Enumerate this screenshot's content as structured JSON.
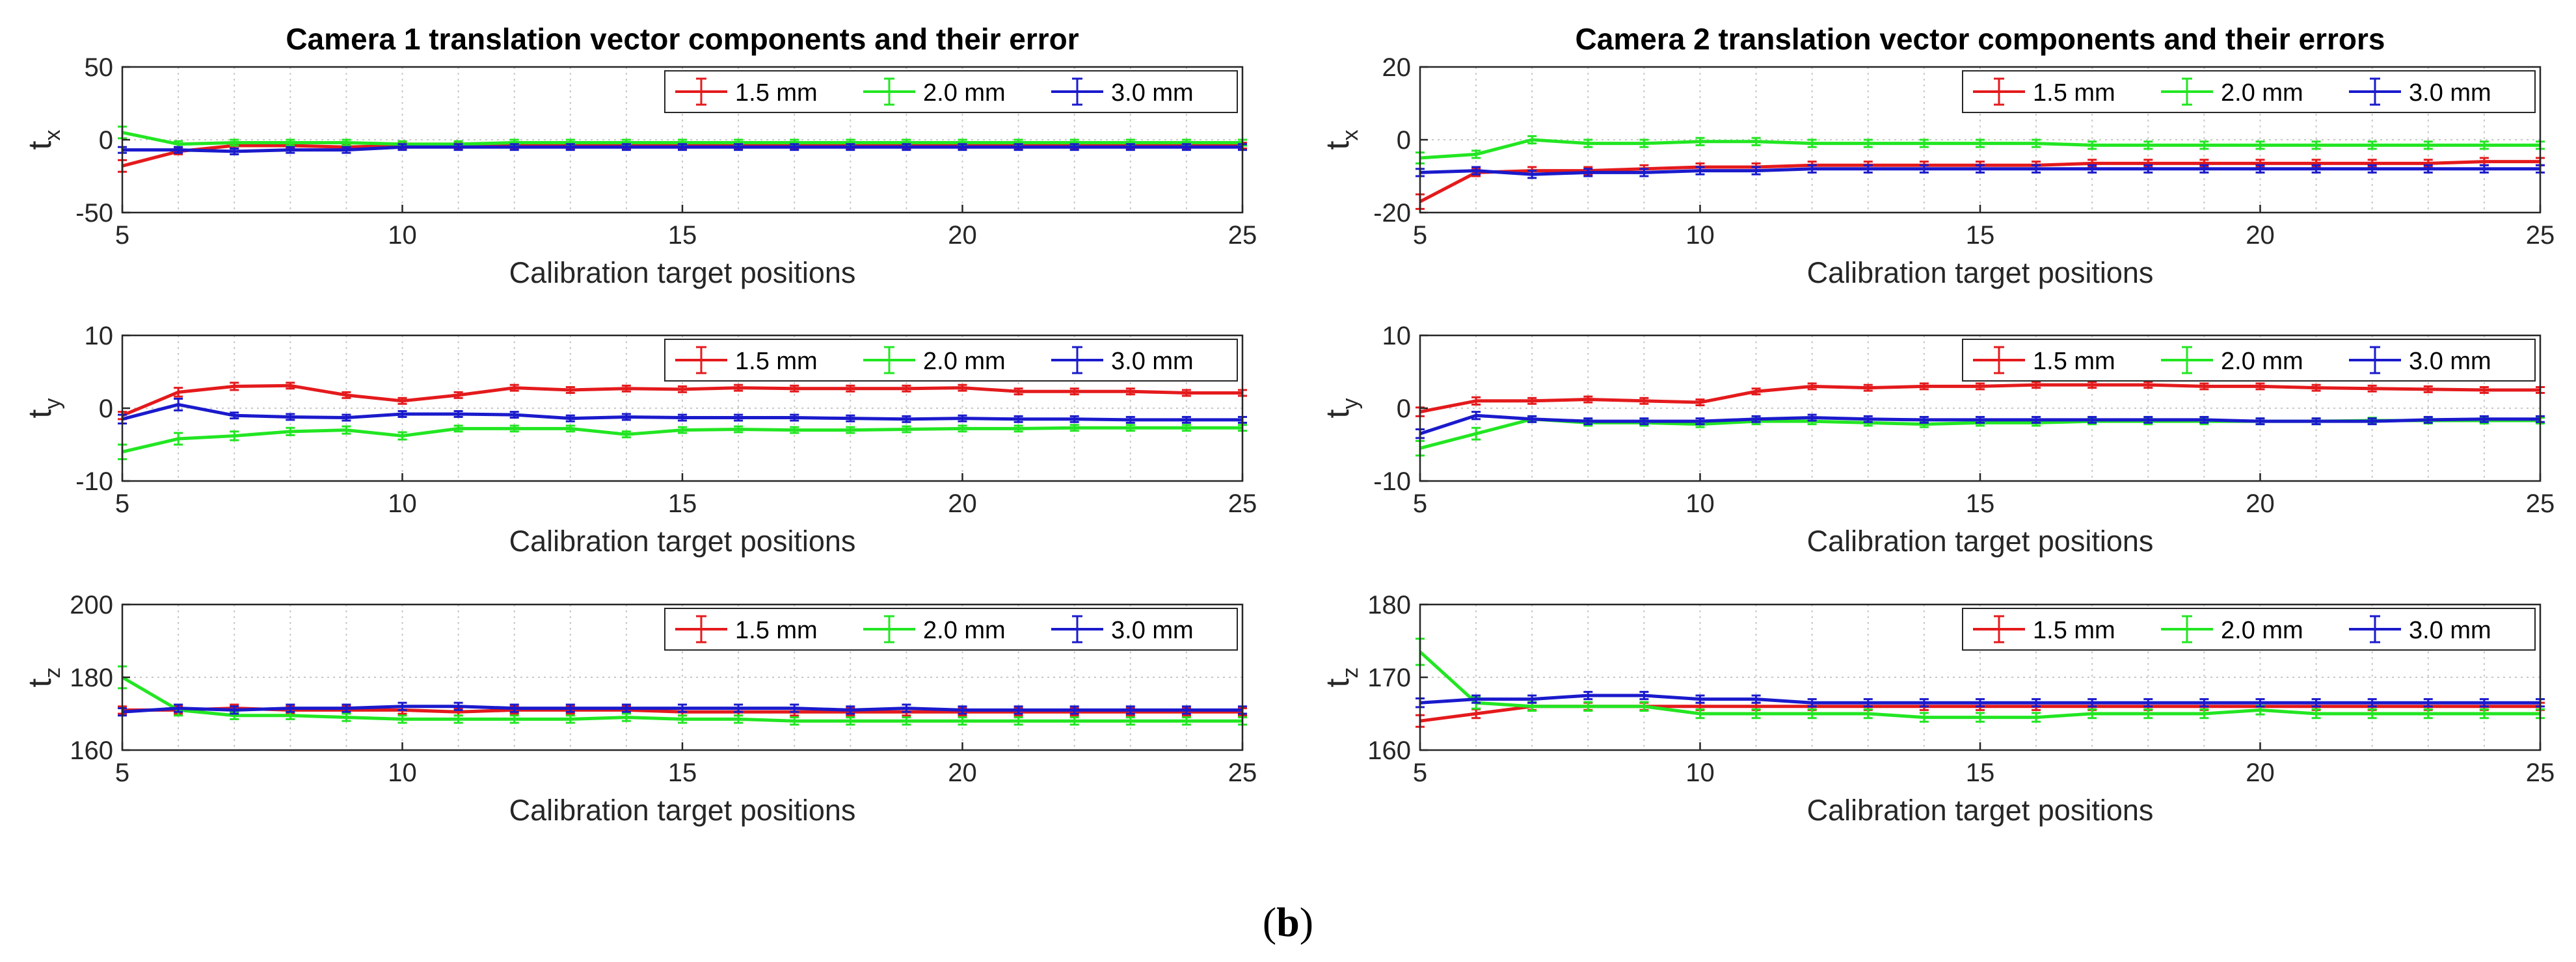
{
  "caption": {
    "open": "(",
    "letter": "b",
    "close": ")"
  },
  "colors": {
    "1.5 mm": "#e41a1c",
    "2.0 mm": "#22e622",
    "3.0 mm": "#1a1acc"
  },
  "chart_data": [
    {
      "type": "line",
      "title": "Camera 1 translation vector components and their error",
      "xlabel": "Calibration target positions",
      "ylabel": "t",
      "ylabel_sub": "x",
      "x": [
        5,
        6,
        7,
        8,
        9,
        10,
        11,
        12,
        13,
        14,
        15,
        16,
        17,
        18,
        19,
        20,
        21,
        22,
        23,
        24,
        25
      ],
      "xlim": [
        5,
        25
      ],
      "xticks": [
        5,
        10,
        15,
        20,
        25
      ],
      "ylim": [
        -50,
        50
      ],
      "yticks": [
        -50,
        0,
        50
      ],
      "grid": true,
      "legend": "top-right",
      "series": [
        {
          "name": "1.5 mm",
          "values": [
            -18,
            -8,
            -4,
            -4,
            -5,
            -4,
            -4,
            -4,
            -4,
            -4,
            -4,
            -4,
            -4,
            -4,
            -4,
            -4,
            -4,
            -4,
            -4,
            -4,
            -4
          ],
          "errors": [
            4,
            2,
            2,
            2,
            2,
            2,
            2,
            2,
            2,
            2,
            2,
            2,
            2,
            2,
            2,
            2,
            2,
            2,
            2,
            2,
            2
          ]
        },
        {
          "name": "2.0 mm",
          "values": [
            5,
            -3,
            -2,
            -2,
            -2,
            -3,
            -3,
            -2,
            -2,
            -2,
            -2,
            -2,
            -2,
            -2,
            -2,
            -2,
            -2,
            -2,
            -2,
            -2,
            -2
          ],
          "errors": [
            4,
            2,
            2,
            2,
            2,
            2,
            2,
            2,
            2,
            2,
            2,
            2,
            2,
            2,
            2,
            2,
            2,
            2,
            2,
            2,
            2
          ]
        },
        {
          "name": "3.0 mm",
          "values": [
            -7,
            -7,
            -8,
            -7,
            -7,
            -5,
            -5,
            -5,
            -5,
            -5,
            -5,
            -5,
            -5,
            -5,
            -5,
            -5,
            -5,
            -5,
            -5,
            -5,
            -5
          ],
          "errors": [
            2,
            2,
            2,
            2,
            2,
            2,
            2,
            2,
            2,
            2,
            2,
            2,
            2,
            2,
            2,
            2,
            2,
            2,
            2,
            2,
            2
          ]
        }
      ]
    },
    {
      "type": "line",
      "title": "",
      "xlabel": "Calibration target positions",
      "ylabel": "t",
      "ylabel_sub": "y",
      "x": [
        5,
        6,
        7,
        8,
        9,
        10,
        11,
        12,
        13,
        14,
        15,
        16,
        17,
        18,
        19,
        20,
        21,
        22,
        23,
        24,
        25
      ],
      "xlim": [
        5,
        25
      ],
      "xticks": [
        5,
        10,
        15,
        20,
        25
      ],
      "ylim": [
        -10,
        10
      ],
      "yticks": [
        -10,
        0,
        10
      ],
      "grid": true,
      "legend": "top-right",
      "series": [
        {
          "name": "1.5 mm",
          "values": [
            -1,
            2.2,
            3,
            3.1,
            1.8,
            1,
            1.8,
            2.8,
            2.5,
            2.7,
            2.6,
            2.8,
            2.7,
            2.7,
            2.7,
            2.8,
            2.3,
            2.3,
            2.3,
            2.1,
            2.1
          ],
          "errors": [
            0.5,
            0.6,
            0.5,
            0.4,
            0.4,
            0.4,
            0.4,
            0.4,
            0.4,
            0.4,
            0.4,
            0.4,
            0.4,
            0.4,
            0.4,
            0.4,
            0.4,
            0.4,
            0.4,
            0.4,
            0.4
          ]
        },
        {
          "name": "2.0 mm",
          "values": [
            -6,
            -4.2,
            -3.8,
            -3.2,
            -3,
            -3.8,
            -2.8,
            -2.8,
            -2.8,
            -3.6,
            -3,
            -2.9,
            -3,
            -3,
            -2.9,
            -2.8,
            -2.8,
            -2.7,
            -2.7,
            -2.7,
            -2.7
          ],
          "errors": [
            1,
            0.8,
            0.6,
            0.5,
            0.5,
            0.5,
            0.4,
            0.4,
            0.4,
            0.4,
            0.4,
            0.4,
            0.4,
            0.4,
            0.4,
            0.4,
            0.4,
            0.4,
            0.4,
            0.4,
            0.4
          ]
        },
        {
          "name": "3.0 mm",
          "values": [
            -1.5,
            0.5,
            -1,
            -1.2,
            -1.3,
            -0.8,
            -0.8,
            -0.9,
            -1.4,
            -1.2,
            -1.3,
            -1.3,
            -1.3,
            -1.4,
            -1.5,
            -1.4,
            -1.5,
            -1.5,
            -1.6,
            -1.6,
            -1.6
          ],
          "errors": [
            0.6,
            0.8,
            0.4,
            0.4,
            0.4,
            0.4,
            0.4,
            0.4,
            0.4,
            0.4,
            0.4,
            0.4,
            0.4,
            0.4,
            0.4,
            0.4,
            0.4,
            0.4,
            0.4,
            0.4,
            0.4
          ]
        }
      ]
    },
    {
      "type": "line",
      "title": "",
      "xlabel": "Calibration target positions",
      "ylabel": "t",
      "ylabel_sub": "z",
      "x": [
        5,
        6,
        7,
        8,
        9,
        10,
        11,
        12,
        13,
        14,
        15,
        16,
        17,
        18,
        19,
        20,
        21,
        22,
        23,
        24,
        25
      ],
      "xlim": [
        5,
        25
      ],
      "xticks": [
        5,
        10,
        15,
        20,
        25
      ],
      "ylim": [
        160,
        200
      ],
      "yticks": [
        160,
        180,
        200
      ],
      "grid": true,
      "legend": "top-right",
      "series": [
        {
          "name": "1.5 mm",
          "values": [
            171,
            171,
            171.5,
            171,
            171,
            171,
            170.5,
            171,
            171,
            171,
            170.5,
            170.5,
            170.5,
            170.5,
            170.5,
            170.5,
            170.5,
            170.5,
            170.5,
            170.5,
            170.5
          ],
          "errors": [
            1,
            1,
            1,
            1,
            1,
            1,
            1,
            1,
            1,
            1,
            1,
            1,
            1,
            1,
            1,
            1,
            1,
            1,
            1,
            1,
            1
          ]
        },
        {
          "name": "2.0 mm",
          "values": [
            180,
            171,
            169.5,
            169.5,
            169,
            168.5,
            168.5,
            168.5,
            168.5,
            169,
            168.5,
            168.5,
            168,
            168,
            168,
            168,
            168,
            168,
            168,
            168,
            168
          ],
          "errors": [
            3,
            1.5,
            1,
            1,
            1,
            1,
            1,
            1,
            1,
            1,
            1,
            1,
            1,
            1,
            1,
            1,
            1,
            1,
            1,
            1,
            1
          ]
        },
        {
          "name": "3.0 mm",
          "values": [
            170.5,
            171.5,
            171,
            171.5,
            171.5,
            172,
            172,
            171.5,
            171.5,
            171.5,
            171.5,
            171.5,
            171.5,
            171,
            171.5,
            171,
            171,
            171,
            171,
            171,
            171
          ],
          "errors": [
            1,
            1,
            1,
            1,
            1,
            1,
            1,
            1,
            1,
            1,
            1,
            1,
            1,
            1,
            1,
            1,
            1,
            1,
            1,
            1,
            1
          ]
        }
      ]
    },
    {
      "type": "line",
      "title": "Camera 2 translation vector components and their errors",
      "xlabel": "Calibration target positions",
      "ylabel": "t",
      "ylabel_sub": "x",
      "x": [
        5,
        6,
        7,
        8,
        9,
        10,
        11,
        12,
        13,
        14,
        15,
        16,
        17,
        18,
        19,
        20,
        21,
        22,
        23,
        24,
        25
      ],
      "xlim": [
        5,
        25
      ],
      "xticks": [
        5,
        10,
        15,
        20,
        25
      ],
      "ylim": [
        -20,
        20
      ],
      "yticks": [
        -20,
        0,
        20
      ],
      "grid": true,
      "legend": "top-right",
      "series": [
        {
          "name": "1.5 mm",
          "values": [
            -17,
            -9,
            -8.5,
            -8.5,
            -8,
            -7.5,
            -7.5,
            -7,
            -7,
            -7,
            -7,
            -7,
            -6.5,
            -6.5,
            -6.5,
            -6.5,
            -6.5,
            -6.5,
            -6.5,
            -6,
            -6
          ],
          "errors": [
            2,
            1,
            1,
            1,
            1,
            1,
            1,
            1,
            1,
            1,
            1,
            1,
            1,
            1,
            1,
            1,
            1,
            1,
            1,
            1,
            1
          ]
        },
        {
          "name": "2.0 mm",
          "values": [
            -5,
            -4,
            0,
            -1,
            -1,
            -0.5,
            -0.5,
            -1,
            -1,
            -1,
            -1,
            -1,
            -1.5,
            -1.5,
            -1.5,
            -1.5,
            -1.5,
            -1.5,
            -1.5,
            -1.5,
            -1.5
          ],
          "errors": [
            1.5,
            1,
            1,
            1,
            1,
            1,
            1,
            1,
            1,
            1,
            1,
            1,
            1,
            1,
            1,
            1,
            1,
            1,
            1,
            1,
            1
          ]
        },
        {
          "name": "3.0 mm",
          "values": [
            -9,
            -8.5,
            -9.5,
            -9,
            -9,
            -8.5,
            -8.5,
            -8,
            -8,
            -8,
            -8,
            -8,
            -8,
            -8,
            -8,
            -8,
            -8,
            -8,
            -8,
            -8,
            -8
          ],
          "errors": [
            1,
            1,
            1,
            1,
            1,
            1,
            1,
            1,
            1,
            1,
            1,
            1,
            1,
            1,
            1,
            1,
            1,
            1,
            1,
            1,
            1
          ]
        }
      ]
    },
    {
      "type": "line",
      "title": "",
      "xlabel": "Calibration target positions",
      "ylabel": "t",
      "ylabel_sub": "y",
      "x": [
        5,
        6,
        7,
        8,
        9,
        10,
        11,
        12,
        13,
        14,
        15,
        16,
        17,
        18,
        19,
        20,
        21,
        22,
        23,
        24,
        25
      ],
      "xlim": [
        5,
        25
      ],
      "xticks": [
        5,
        10,
        15,
        20,
        25
      ],
      "ylim": [
        -10,
        10
      ],
      "yticks": [
        -10,
        0,
        10
      ],
      "grid": true,
      "legend": "top-right",
      "series": [
        {
          "name": "1.5 mm",
          "values": [
            -0.5,
            1,
            1,
            1.2,
            1,
            0.8,
            2.3,
            3,
            2.8,
            3,
            3,
            3.2,
            3.2,
            3.2,
            3,
            3,
            2.8,
            2.7,
            2.6,
            2.5,
            2.5
          ],
          "errors": [
            0.6,
            0.5,
            0.4,
            0.4,
            0.4,
            0.4,
            0.4,
            0.4,
            0.4,
            0.4,
            0.4,
            0.4,
            0.4,
            0.4,
            0.4,
            0.4,
            0.4,
            0.4,
            0.4,
            0.4,
            0.4
          ]
        },
        {
          "name": "2.0 mm",
          "values": [
            -5.5,
            -3.5,
            -1.5,
            -2,
            -2,
            -2.2,
            -1.8,
            -1.8,
            -2,
            -2.2,
            -2,
            -2,
            -1.8,
            -1.8,
            -1.8,
            -1.8,
            -1.8,
            -1.7,
            -1.7,
            -1.7,
            -1.7
          ],
          "errors": [
            1,
            0.8,
            0.4,
            0.4,
            0.4,
            0.4,
            0.4,
            0.4,
            0.4,
            0.4,
            0.4,
            0.4,
            0.4,
            0.4,
            0.4,
            0.4,
            0.4,
            0.4,
            0.4,
            0.4,
            0.4
          ]
        },
        {
          "name": "3.0 mm",
          "values": [
            -3.5,
            -1,
            -1.5,
            -1.8,
            -1.8,
            -1.8,
            -1.5,
            -1.3,
            -1.5,
            -1.6,
            -1.6,
            -1.6,
            -1.6,
            -1.6,
            -1.6,
            -1.8,
            -1.8,
            -1.8,
            -1.6,
            -1.5,
            -1.5
          ],
          "errors": [
            0.6,
            0.5,
            0.4,
            0.4,
            0.4,
            0.4,
            0.4,
            0.4,
            0.4,
            0.4,
            0.4,
            0.4,
            0.4,
            0.4,
            0.4,
            0.4,
            0.4,
            0.4,
            0.4,
            0.4,
            0.4
          ]
        }
      ]
    },
    {
      "type": "line",
      "title": "",
      "xlabel": "Calibration target positions",
      "ylabel": "t",
      "ylabel_sub": "z",
      "x": [
        5,
        6,
        7,
        8,
        9,
        10,
        11,
        12,
        13,
        14,
        15,
        16,
        17,
        18,
        19,
        20,
        21,
        22,
        23,
        24,
        25
      ],
      "xlim": [
        5,
        25
      ],
      "xticks": [
        5,
        10,
        15,
        20,
        25
      ],
      "ylim": [
        160,
        180
      ],
      "yticks": [
        160,
        170,
        180
      ],
      "grid": true,
      "legend": "top-right",
      "series": [
        {
          "name": "1.5 mm",
          "values": [
            164,
            165,
            166,
            166,
            166,
            166,
            166,
            166,
            166,
            166,
            166,
            166,
            166,
            166,
            166,
            166,
            166,
            166,
            166,
            166,
            166
          ],
          "errors": [
            0.8,
            0.6,
            0.5,
            0.5,
            0.5,
            0.5,
            0.5,
            0.5,
            0.5,
            0.5,
            0.5,
            0.5,
            0.5,
            0.5,
            0.5,
            0.5,
            0.5,
            0.5,
            0.5,
            0.5,
            0.5
          ]
        },
        {
          "name": "2.0 mm",
          "values": [
            173.5,
            166.5,
            166,
            166,
            166,
            165,
            165,
            165,
            165,
            164.5,
            164.5,
            164.5,
            165,
            165,
            165,
            165.5,
            165,
            165,
            165,
            165,
            165
          ],
          "errors": [
            1.8,
            0.8,
            0.6,
            0.6,
            0.6,
            0.6,
            0.6,
            0.6,
            0.6,
            0.6,
            0.6,
            0.6,
            0.6,
            0.6,
            0.6,
            0.6,
            0.6,
            0.6,
            0.6,
            0.6,
            0.6
          ]
        },
        {
          "name": "3.0 mm",
          "values": [
            166.5,
            167,
            167,
            167.5,
            167.5,
            167,
            167,
            166.5,
            166.5,
            166.5,
            166.5,
            166.5,
            166.5,
            166.5,
            166.5,
            166.5,
            166.5,
            166.5,
            166.5,
            166.5,
            166.5
          ],
          "errors": [
            0.6,
            0.5,
            0.5,
            0.5,
            0.5,
            0.5,
            0.5,
            0.5,
            0.5,
            0.5,
            0.5,
            0.5,
            0.5,
            0.5,
            0.5,
            0.5,
            0.5,
            0.5,
            0.5,
            0.5,
            0.5
          ]
        }
      ]
    }
  ]
}
